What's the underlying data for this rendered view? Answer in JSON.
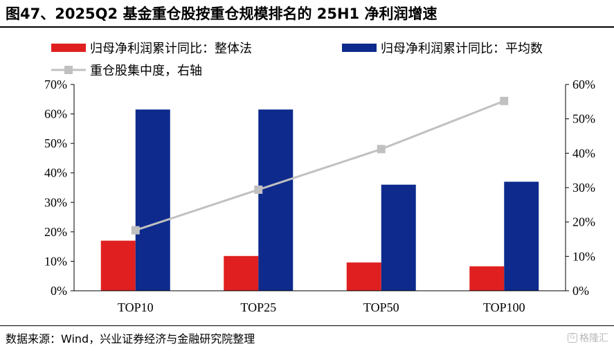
{
  "title": "图47、2025Q2 基金重仓股按重仓规模排名的 25H1 净利润增速",
  "source": "数据来源：Wind，兴业证券经济与金融研究院整理",
  "watermark": "格隆汇",
  "colors": {
    "overall": "#e02020",
    "average": "#0d2a8c",
    "concentration": "#c0c0c0"
  },
  "chart_data": {
    "type": "bar",
    "categories": [
      "TOP10",
      "TOP25",
      "TOP50",
      "TOP100"
    ],
    "series": [
      {
        "name": "归母净利润累计同比：整体法",
        "type": "bar",
        "axis": "left",
        "values": [
          17,
          11.8,
          9.6,
          8.3
        ]
      },
      {
        "name": "归母净利润累计同比：平均数",
        "type": "bar",
        "axis": "left",
        "values": [
          61.5,
          61.5,
          36,
          37
        ]
      },
      {
        "name": "重仓股集中度，右轴",
        "type": "line",
        "axis": "right",
        "values": [
          17.6,
          29.4,
          41.2,
          55.2
        ]
      }
    ],
    "y_left": {
      "ylim": [
        0,
        70
      ],
      "ticks": [
        "0%",
        "10%",
        "20%",
        "30%",
        "40%",
        "50%",
        "60%",
        "70%"
      ]
    },
    "y_right": {
      "ylim": [
        0,
        60
      ],
      "ticks": [
        "0%",
        "10%",
        "20%",
        "30%",
        "40%",
        "50%",
        "60%"
      ]
    },
    "grid": false,
    "legend_placement": "top"
  }
}
